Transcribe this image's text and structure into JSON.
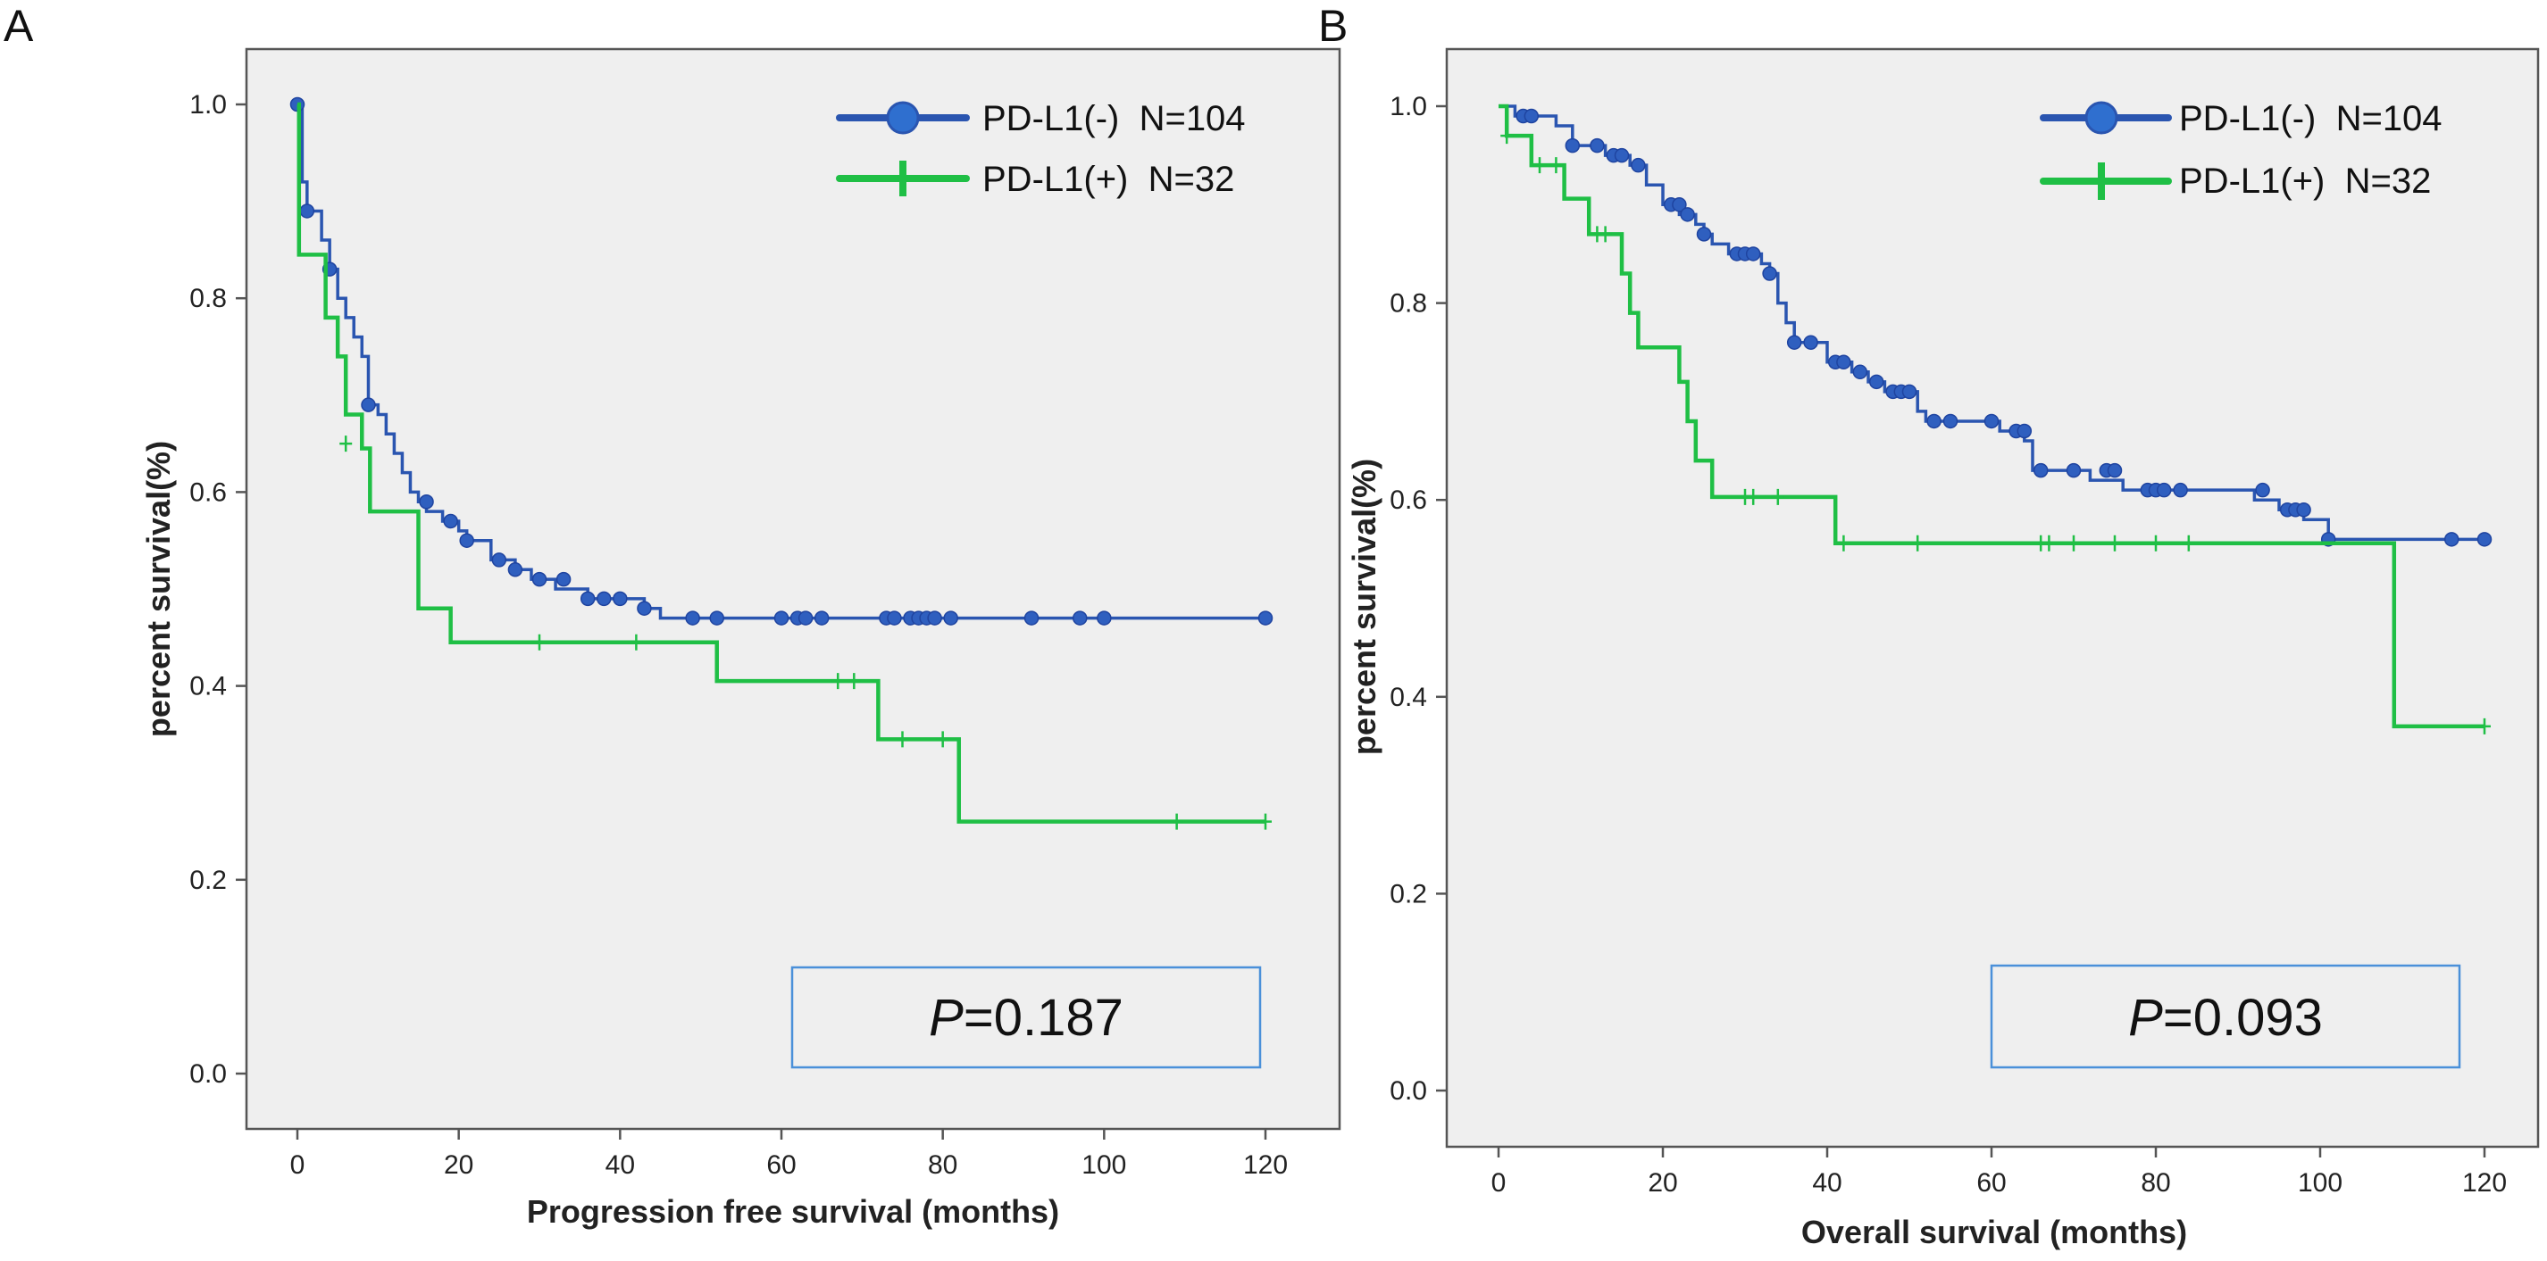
{
  "chart_data": [
    {
      "type": "line",
      "subtype": "kaplan-meier",
      "panel": "A",
      "xlabel": "Progression free survival (months)",
      "ylabel": "percent survival(%)",
      "xlim": [
        -5,
        125
      ],
      "ylim": [
        -0.05,
        1.06
      ],
      "xticks": [
        0,
        20,
        40,
        60,
        80,
        100,
        120
      ],
      "yticks": [
        0.0,
        0.2,
        0.4,
        0.6,
        0.8,
        1.0
      ],
      "legend_position": "top-right",
      "annotation": {
        "p_label": "P",
        "p_value": "=0.187"
      },
      "series": [
        {
          "name": "PD-L1(-)  N=104",
          "color": "#2a55b0",
          "marker": "dot",
          "steps": [
            [
              0,
              1.0
            ],
            [
              0.6,
              0.92
            ],
            [
              1.2,
              0.89
            ],
            [
              3,
              0.86
            ],
            [
              4,
              0.83
            ],
            [
              5,
              0.8
            ],
            [
              6,
              0.78
            ],
            [
              7,
              0.76
            ],
            [
              8,
              0.74
            ],
            [
              8.8,
              0.69
            ],
            [
              10,
              0.68
            ],
            [
              11,
              0.66
            ],
            [
              12,
              0.64
            ],
            [
              13,
              0.62
            ],
            [
              14,
              0.6
            ],
            [
              15,
              0.59
            ],
            [
              16,
              0.58
            ],
            [
              18,
              0.57
            ],
            [
              20,
              0.56
            ],
            [
              21,
              0.55
            ],
            [
              24,
              0.53
            ],
            [
              27,
              0.52
            ],
            [
              29,
              0.51
            ],
            [
              32,
              0.5
            ],
            [
              36,
              0.49
            ],
            [
              41,
              0.49
            ],
            [
              43,
              0.48
            ],
            [
              45,
              0.47
            ],
            [
              120,
              0.47
            ]
          ],
          "censors": [
            [
              0,
              1.0
            ],
            [
              1.2,
              0.89
            ],
            [
              4,
              0.83
            ],
            [
              8.8,
              0.69
            ],
            [
              16,
              0.59
            ],
            [
              19,
              0.57
            ],
            [
              21,
              0.55
            ],
            [
              25,
              0.53
            ],
            [
              27,
              0.52
            ],
            [
              30,
              0.51
            ],
            [
              33,
              0.51
            ],
            [
              36,
              0.49
            ],
            [
              38,
              0.49
            ],
            [
              40,
              0.49
            ],
            [
              43,
              0.48
            ],
            [
              49,
              0.47
            ],
            [
              52,
              0.47
            ],
            [
              60,
              0.47
            ],
            [
              62,
              0.47
            ],
            [
              63,
              0.47
            ],
            [
              65,
              0.47
            ],
            [
              73,
              0.47
            ],
            [
              74,
              0.47
            ],
            [
              76,
              0.47
            ],
            [
              77,
              0.47
            ],
            [
              78,
              0.47
            ],
            [
              79,
              0.47
            ],
            [
              81,
              0.47
            ],
            [
              91,
              0.47
            ],
            [
              97,
              0.47
            ],
            [
              100,
              0.47
            ],
            [
              120,
              0.47
            ]
          ]
        },
        {
          "name": "PD-L1(+)  N=32",
          "color": "#1fbf45",
          "marker": "plus",
          "steps": [
            [
              0,
              1.0
            ],
            [
              0.2,
              0.845
            ],
            [
              3.5,
              0.78
            ],
            [
              5,
              0.74
            ],
            [
              6,
              0.68
            ],
            [
              8,
              0.645
            ],
            [
              9,
              0.58
            ],
            [
              15,
              0.48
            ],
            [
              19,
              0.445
            ],
            [
              52,
              0.405
            ],
            [
              72,
              0.345
            ],
            [
              82,
              0.26
            ],
            [
              120,
              0.26
            ]
          ],
          "censors": [
            [
              6,
              0.65
            ],
            [
              30,
              0.445
            ],
            [
              42,
              0.445
            ],
            [
              67,
              0.405
            ],
            [
              69,
              0.405
            ],
            [
              75,
              0.345
            ],
            [
              80,
              0.345
            ],
            [
              109,
              0.26
            ],
            [
              120,
              0.26
            ]
          ]
        }
      ]
    },
    {
      "type": "line",
      "subtype": "kaplan-meier",
      "panel": "B",
      "xlabel": "Overall survival (months)",
      "ylabel": "percent survival(%)",
      "xlim": [
        -5,
        125
      ],
      "ylim": [
        -0.05,
        1.06
      ],
      "xticks": [
        0,
        20,
        40,
        60,
        80,
        100,
        120
      ],
      "yticks": [
        0.0,
        0.2,
        0.4,
        0.6,
        0.8,
        1.0
      ],
      "legend_position": "top-right",
      "annotation": {
        "p_label": "P",
        "p_value": "=0.093"
      },
      "series": [
        {
          "name": "PD-L1(-)  N=104",
          "color": "#2a55b0",
          "marker": "dot",
          "steps": [
            [
              0,
              1.0
            ],
            [
              2,
              0.99
            ],
            [
              7,
              0.98
            ],
            [
              9,
              0.96
            ],
            [
              13,
              0.95
            ],
            [
              16,
              0.94
            ],
            [
              18,
              0.92
            ],
            [
              20,
              0.9
            ],
            [
              22,
              0.89
            ],
            [
              24,
              0.88
            ],
            [
              25,
              0.87
            ],
            [
              26,
              0.86
            ],
            [
              28,
              0.85
            ],
            [
              32,
              0.84
            ],
            [
              33,
              0.83
            ],
            [
              34,
              0.8
            ],
            [
              35,
              0.78
            ],
            [
              36,
              0.76
            ],
            [
              40,
              0.74
            ],
            [
              43,
              0.73
            ],
            [
              45,
              0.72
            ],
            [
              47,
              0.71
            ],
            [
              51,
              0.69
            ],
            [
              52,
              0.68
            ],
            [
              61,
              0.67
            ],
            [
              64,
              0.66
            ],
            [
              65,
              0.63
            ],
            [
              72,
              0.62
            ],
            [
              76,
              0.61
            ],
            [
              89,
              0.61
            ],
            [
              92,
              0.6
            ],
            [
              95,
              0.59
            ],
            [
              98,
              0.58
            ],
            [
              101,
              0.56
            ],
            [
              120,
              0.56
            ]
          ],
          "censors": [
            [
              3,
              0.99
            ],
            [
              4,
              0.99
            ],
            [
              9,
              0.96
            ],
            [
              12,
              0.96
            ],
            [
              14,
              0.95
            ],
            [
              15,
              0.95
            ],
            [
              17,
              0.94
            ],
            [
              21,
              0.9
            ],
            [
              22,
              0.9
            ],
            [
              23,
              0.89
            ],
            [
              25,
              0.87
            ],
            [
              29,
              0.85
            ],
            [
              30,
              0.85
            ],
            [
              31,
              0.85
            ],
            [
              33,
              0.83
            ],
            [
              36,
              0.76
            ],
            [
              38,
              0.76
            ],
            [
              41,
              0.74
            ],
            [
              42,
              0.74
            ],
            [
              44,
              0.73
            ],
            [
              46,
              0.72
            ],
            [
              48,
              0.71
            ],
            [
              49,
              0.71
            ],
            [
              50,
              0.71
            ],
            [
              53,
              0.68
            ],
            [
              55,
              0.68
            ],
            [
              60,
              0.68
            ],
            [
              63,
              0.67
            ],
            [
              64,
              0.67
            ],
            [
              66,
              0.63
            ],
            [
              70,
              0.63
            ],
            [
              74,
              0.63
            ],
            [
              75,
              0.63
            ],
            [
              79,
              0.61
            ],
            [
              80,
              0.61
            ],
            [
              81,
              0.61
            ],
            [
              83,
              0.61
            ],
            [
              93,
              0.61
            ],
            [
              96,
              0.59
            ],
            [
              97,
              0.59
            ],
            [
              98,
              0.59
            ],
            [
              101,
              0.56
            ],
            [
              116,
              0.56
            ],
            [
              120,
              0.56
            ]
          ]
        },
        {
          "name": "PD-L1(+)  N=32",
          "color": "#1fbf45",
          "marker": "plus",
          "steps": [
            [
              0,
              1.0
            ],
            [
              1,
              0.97
            ],
            [
              4,
              0.94
            ],
            [
              8,
              0.906
            ],
            [
              11,
              0.87
            ],
            [
              15,
              0.83
            ],
            [
              16,
              0.79
            ],
            [
              17,
              0.755
            ],
            [
              22,
              0.72
            ],
            [
              23,
              0.68
            ],
            [
              24,
              0.64
            ],
            [
              26,
              0.603
            ],
            [
              41,
              0.556
            ],
            [
              109,
              0.37
            ],
            [
              120,
              0.37
            ]
          ],
          "censors": [
            [
              1,
              0.97
            ],
            [
              5,
              0.94
            ],
            [
              7,
              0.94
            ],
            [
              12,
              0.87
            ],
            [
              13,
              0.87
            ],
            [
              30,
              0.603
            ],
            [
              31,
              0.603
            ],
            [
              34,
              0.603
            ],
            [
              42,
              0.556
            ],
            [
              51,
              0.556
            ],
            [
              66,
              0.556
            ],
            [
              67,
              0.556
            ],
            [
              70,
              0.556
            ],
            [
              75,
              0.556
            ],
            [
              80,
              0.556
            ],
            [
              84,
              0.556
            ],
            [
              120,
              0.37
            ]
          ]
        }
      ]
    }
  ]
}
